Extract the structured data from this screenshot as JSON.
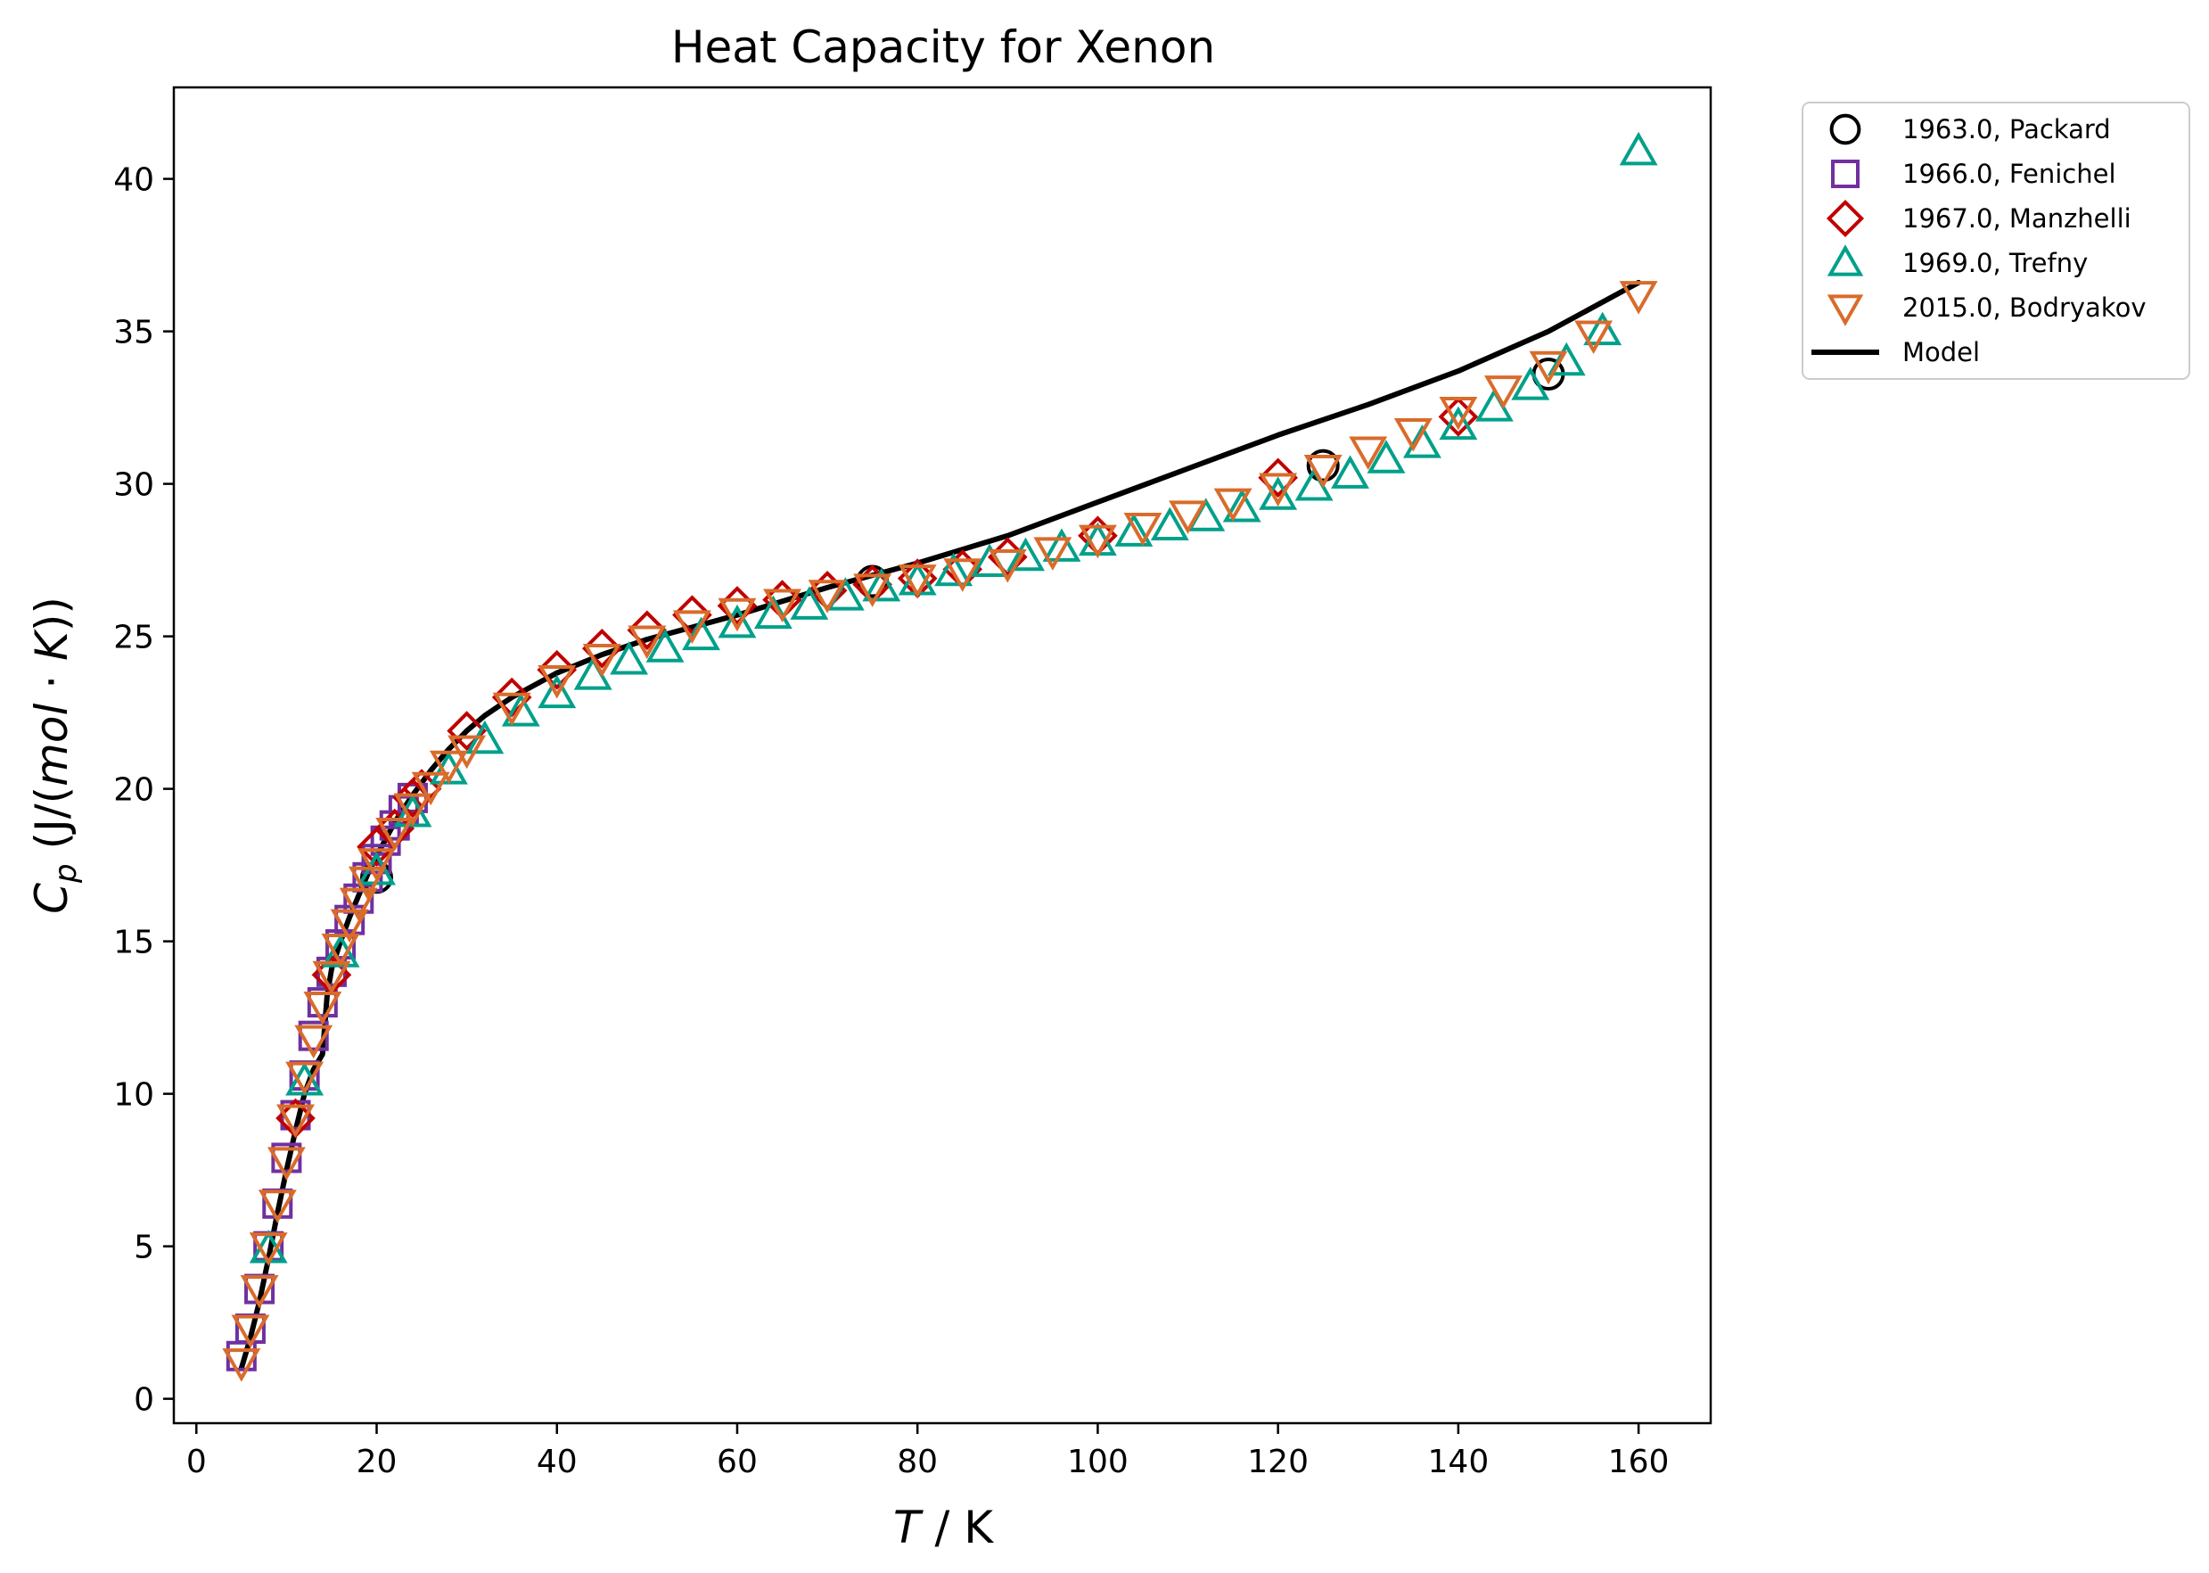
{
  "chart_data": {
    "type": "scatter",
    "title": "Heat Capacity for Xenon",
    "xlabel_italic": "T",
    "xlabel_rest": " / K",
    "ylabel_italic_c": "C",
    "ylabel_sub": "p",
    "ylabel_open": " (J/(",
    "ylabel_mol": "mol",
    "ylabel_dot": " · ",
    "ylabel_k": "K",
    "ylabel_close": "))",
    "xlim": [
      -2.5,
      168
    ],
    "ylim": [
      -0.8,
      43
    ],
    "xticks": [
      0,
      20,
      40,
      60,
      80,
      100,
      120,
      140,
      160
    ],
    "yticks": [
      0,
      5,
      10,
      15,
      20,
      25,
      30,
      35,
      40
    ],
    "legend_position": "outside top-right",
    "series": [
      {
        "name": "1963.0, Packard",
        "marker": "circle",
        "color": "#000000",
        "points": [
          [
            20,
            17.1
          ],
          [
            75,
            26.8
          ],
          [
            125,
            30.6
          ],
          [
            150,
            33.6
          ]
        ]
      },
      {
        "name": "1966.0, Fenichel",
        "marker": "square",
        "color": "#7030a0",
        "points": [
          [
            5,
            1.4
          ],
          [
            6,
            2.3
          ],
          [
            7,
            3.6
          ],
          [
            8,
            5.0
          ],
          [
            9,
            6.4
          ],
          [
            10,
            7.9
          ],
          [
            11,
            9.3
          ],
          [
            12,
            10.6
          ],
          [
            13,
            11.9
          ],
          [
            14,
            13.0
          ],
          [
            15,
            14.0
          ],
          [
            16,
            14.9
          ],
          [
            17,
            15.7
          ],
          [
            18,
            16.4
          ],
          [
            19,
            17.1
          ],
          [
            20,
            17.7
          ],
          [
            21,
            18.3
          ],
          [
            22,
            18.8
          ],
          [
            23,
            19.3
          ],
          [
            24,
            19.7
          ]
        ]
      },
      {
        "name": "1967.0, Manzhelli",
        "marker": "diamond",
        "color": "#c00000",
        "points": [
          [
            11,
            9.2
          ],
          [
            15,
            13.9
          ],
          [
            20,
            18.1
          ],
          [
            22,
            18.7
          ],
          [
            24,
            19.7
          ],
          [
            25,
            20.0
          ],
          [
            30,
            21.9
          ],
          [
            35,
            23.0
          ],
          [
            40,
            23.9
          ],
          [
            45,
            24.6
          ],
          [
            50,
            25.2
          ],
          [
            55,
            25.7
          ],
          [
            60,
            26.0
          ],
          [
            65,
            26.2
          ],
          [
            70,
            26.5
          ],
          [
            75,
            26.7
          ],
          [
            80,
            26.9
          ],
          [
            85,
            27.2
          ],
          [
            90,
            27.6
          ],
          [
            100,
            28.3
          ],
          [
            120,
            30.2
          ],
          [
            140,
            32.2
          ]
        ]
      },
      {
        "name": "1969.0, Trefny",
        "marker": "triangle-up",
        "color": "#00a08a",
        "points": [
          [
            8,
            4.9
          ],
          [
            12,
            10.4
          ],
          [
            16,
            14.6
          ],
          [
            20,
            17.3
          ],
          [
            24,
            19.2
          ],
          [
            28,
            20.6
          ],
          [
            32,
            21.6
          ],
          [
            36,
            22.5
          ],
          [
            40,
            23.1
          ],
          [
            44,
            23.7
          ],
          [
            48,
            24.2
          ],
          [
            52,
            24.6
          ],
          [
            56,
            25.0
          ],
          [
            60,
            25.4
          ],
          [
            64,
            25.7
          ],
          [
            68,
            26.0
          ],
          [
            72,
            26.3
          ],
          [
            76,
            26.6
          ],
          [
            80,
            26.8
          ],
          [
            84,
            27.1
          ],
          [
            88,
            27.4
          ],
          [
            92,
            27.6
          ],
          [
            96,
            27.9
          ],
          [
            100,
            28.1
          ],
          [
            104,
            28.4
          ],
          [
            108,
            28.6
          ],
          [
            112,
            28.9
          ],
          [
            116,
            29.2
          ],
          [
            120,
            29.6
          ],
          [
            124,
            29.9
          ],
          [
            128,
            30.3
          ],
          [
            132,
            30.8
          ],
          [
            136,
            31.3
          ],
          [
            140,
            31.9
          ],
          [
            144,
            32.5
          ],
          [
            148,
            33.2
          ],
          [
            152,
            34.0
          ],
          [
            156,
            35.0
          ],
          [
            160,
            40.9
          ]
        ]
      },
      {
        "name": "2015.0, Bodryakov",
        "marker": "triangle-down",
        "color": "#d96b2b",
        "points": [
          [
            5,
            1.2
          ],
          [
            6,
            2.3
          ],
          [
            7,
            3.6
          ],
          [
            8,
            5.0
          ],
          [
            9,
            6.4
          ],
          [
            10,
            7.8
          ],
          [
            11,
            9.2
          ],
          [
            12,
            10.6
          ],
          [
            13,
            11.8
          ],
          [
            14,
            12.9
          ],
          [
            15,
            13.9
          ],
          [
            16,
            14.8
          ],
          [
            17,
            15.6
          ],
          [
            18,
            16.3
          ],
          [
            19,
            17.0
          ],
          [
            20,
            17.6
          ],
          [
            22,
            18.6
          ],
          [
            24,
            19.4
          ],
          [
            26,
            20.1
          ],
          [
            28,
            20.8
          ],
          [
            30,
            21.3
          ],
          [
            35,
            22.7
          ],
          [
            40,
            23.6
          ],
          [
            45,
            24.3
          ],
          [
            50,
            24.9
          ],
          [
            55,
            25.4
          ],
          [
            60,
            25.8
          ],
          [
            65,
            26.1
          ],
          [
            70,
            26.4
          ],
          [
            75,
            26.6
          ],
          [
            80,
            26.9
          ],
          [
            85,
            27.1
          ],
          [
            90,
            27.4
          ],
          [
            95,
            27.8
          ],
          [
            100,
            28.2
          ],
          [
            105,
            28.6
          ],
          [
            110,
            29.0
          ],
          [
            115,
            29.4
          ],
          [
            120,
            29.9
          ],
          [
            125,
            30.5
          ],
          [
            130,
            31.1
          ],
          [
            135,
            31.7
          ],
          [
            140,
            32.4
          ],
          [
            145,
            33.1
          ],
          [
            150,
            33.9
          ],
          [
            155,
            34.9
          ],
          [
            160,
            36.2
          ]
        ]
      },
      {
        "name": "Model",
        "marker": "line",
        "color": "#000000",
        "points": [
          [
            5,
            1.0
          ],
          [
            6,
            2.0
          ],
          [
            7,
            3.2
          ],
          [
            8,
            4.6
          ],
          [
            9,
            6.1
          ],
          [
            10,
            7.5
          ],
          [
            11,
            8.8
          ],
          [
            12,
            10.0
          ],
          [
            13,
            10.8
          ],
          [
            14,
            11.3
          ],
          [
            14.5,
            13.2
          ],
          [
            15,
            14.1
          ],
          [
            16,
            15.0
          ],
          [
            17,
            15.8
          ],
          [
            18,
            16.5
          ],
          [
            19,
            17.2
          ],
          [
            20,
            17.8
          ],
          [
            22,
            18.9
          ],
          [
            24,
            19.8
          ],
          [
            26,
            20.6
          ],
          [
            28,
            21.3
          ],
          [
            30,
            21.9
          ],
          [
            32,
            22.4
          ],
          [
            35,
            23.0
          ],
          [
            40,
            23.8
          ],
          [
            45,
            24.4
          ],
          [
            50,
            24.9
          ],
          [
            55,
            25.3
          ],
          [
            60,
            25.7
          ],
          [
            70,
            26.6
          ],
          [
            80,
            27.4
          ],
          [
            90,
            28.3
          ],
          [
            100,
            29.4
          ],
          [
            110,
            30.5
          ],
          [
            120,
            31.6
          ],
          [
            130,
            32.6
          ],
          [
            140,
            33.7
          ],
          [
            150,
            35.0
          ],
          [
            160,
            36.6
          ]
        ]
      }
    ]
  }
}
